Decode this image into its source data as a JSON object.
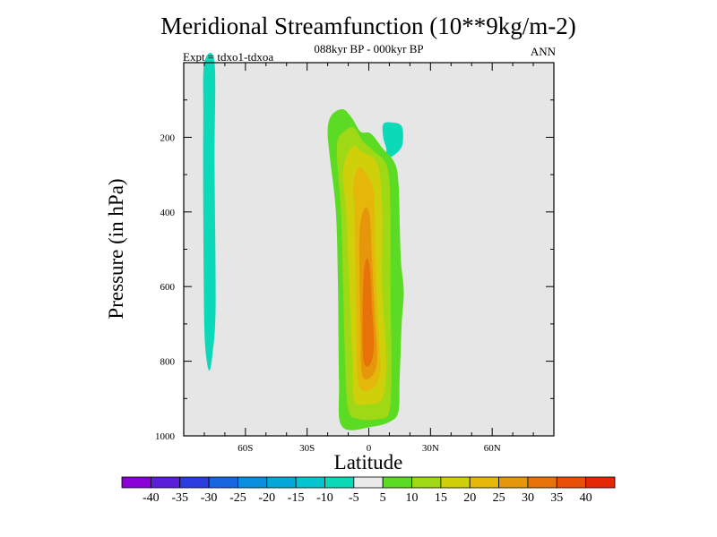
{
  "chart_data": {
    "type": "contour",
    "title": "Meridional Streamfunction (10**9kg/m-2)",
    "subtitle": "088kyr BP - 000kyr BP",
    "left_annotation": "Expt = tdxo1-tdxoa",
    "right_annotation": "ANN",
    "xlabel": "Latitude",
    "ylabel": "Pressure (in hPa)",
    "xlim": [
      -90,
      90
    ],
    "ylim": [
      1000,
      0
    ],
    "x_ticks": [
      {
        "value": -60,
        "label": "60S"
      },
      {
        "value": -30,
        "label": "30S"
      },
      {
        "value": 0,
        "label": "0"
      },
      {
        "value": 30,
        "label": "30N"
      },
      {
        "value": 60,
        "label": "60N"
      }
    ],
    "y_ticks": [
      {
        "value": 200,
        "label": "200"
      },
      {
        "value": 400,
        "label": "400"
      },
      {
        "value": 600,
        "label": "600"
      },
      {
        "value": 800,
        "label": "800"
      },
      {
        "value": 1000,
        "label": "1000"
      }
    ],
    "colorbar": {
      "labels": [
        "-40",
        "-35",
        "-30",
        "-25",
        "-20",
        "-15",
        "-10",
        "-5",
        "5",
        "10",
        "15",
        "20",
        "25",
        "30",
        "35",
        "40"
      ],
      "colors": [
        "#8a00d6",
        "#5a1fd6",
        "#2a3ee0",
        "#1666df",
        "#0a8ee0",
        "#04a8d8",
        "#05c4d2",
        "#0bd9b8",
        "#eaeaea",
        "#5cdb24",
        "#9fd915",
        "#cfcf0a",
        "#e6b70b",
        "#e6960b",
        "#e8720a",
        "#e85008",
        "#e42806"
      ]
    },
    "features": [
      {
        "name": "negative-cell",
        "level": -10,
        "color": "#0bd9b8",
        "outline": [
          [
            -80,
            0
          ],
          [
            -75,
            0
          ],
          [
            -75,
            265
          ],
          [
            -74.5,
            650
          ],
          [
            -76,
            780
          ],
          [
            -77.5,
            825
          ],
          [
            -79,
            790
          ],
          [
            -80,
            700
          ],
          [
            -80.5,
            400
          ],
          [
            -80.5,
            150
          ]
        ]
      },
      {
        "name": "negative-cell-small",
        "level": -10,
        "color": "#0bd9b8",
        "outline": [
          [
            7,
            165
          ],
          [
            11,
            160
          ],
          [
            16,
            170
          ],
          [
            16.5,
            215
          ],
          [
            14,
            240
          ],
          [
            9,
            255
          ],
          [
            8.5,
            230
          ],
          [
            7,
            200
          ]
        ]
      },
      {
        "name": "positive-cell",
        "levels": [
          {
            "level": 5,
            "color": "#5cdb24",
            "outline": [
              [
                -20,
                180
              ],
              [
                -18,
                140
              ],
              [
                -12.5,
                125
              ],
              [
                -8,
                150
              ],
              [
                -4,
                185
              ],
              [
                1,
                190
              ],
              [
                6.5,
                228
              ],
              [
                12.5,
                268
              ],
              [
                14.5,
                330
              ],
              [
                15.5,
                520
              ],
              [
                17,
                612
              ],
              [
                16,
                700
              ],
              [
                15,
                850
              ],
              [
                14.5,
                932
              ],
              [
                11,
                960
              ],
              [
                2,
                975
              ],
              [
                -13,
                975
              ],
              [
                -14.5,
                850
              ],
              [
                -15,
                600
              ],
              [
                -16,
                400
              ],
              [
                -19,
                250
              ]
            ]
          },
          {
            "level": 10,
            "color": "#9fd915",
            "outline": [
              [
                -15.5,
                225
              ],
              [
                -11,
                180
              ],
              [
                -7,
                175
              ],
              [
                -3,
                210
              ],
              [
                2,
                235
              ],
              [
                9,
                280
              ],
              [
                10.5,
                400
              ],
              [
                10.5,
                600
              ],
              [
                11,
                800
              ],
              [
                10,
                935
              ],
              [
                4,
                955
              ],
              [
                -5,
                955
              ],
              [
                -10,
                930
              ],
              [
                -11.5,
                800
              ],
              [
                -12.5,
                600
              ],
              [
                -13.5,
                400
              ]
            ]
          },
          {
            "level": 15,
            "color": "#cfcf0a",
            "outline": [
              [
                -12.5,
                290
              ],
              [
                -8,
                225
              ],
              [
                -3,
                240
              ],
              [
                4,
                270
              ],
              [
                6.5,
                380
              ],
              [
                6.5,
                600
              ],
              [
                8.5,
                800
              ],
              [
                6.5,
                900
              ],
              [
                -1,
                915
              ],
              [
                -7,
                905
              ],
              [
                -8,
                800
              ],
              [
                -9.5,
                600
              ],
              [
                -11,
                400
              ]
            ]
          },
          {
            "level": 20,
            "color": "#e6b70b",
            "outline": [
              [
                -7.5,
                330
              ],
              [
                -5,
                280
              ],
              [
                -1,
                300
              ],
              [
                2.5,
                350
              ],
              [
                3,
                500
              ],
              [
                4.5,
                700
              ],
              [
                5.5,
                830
              ],
              [
                1,
                875
              ],
              [
                -5,
                860
              ],
              [
                -6,
                700
              ],
              [
                -6.5,
                550
              ],
              [
                -7,
                400
              ]
            ]
          },
          {
            "level": 25,
            "color": "#e6960b",
            "outline": [
              [
                -4.5,
                450
              ],
              [
                -2,
                390
              ],
              [
                0.5,
                410
              ],
              [
                1.5,
                520
              ],
              [
                3,
                680
              ],
              [
                4,
                800
              ],
              [
                0.5,
                845
              ],
              [
                -3.5,
                830
              ],
              [
                -4,
                700
              ],
              [
                -4.5,
                570
              ]
            ]
          },
          {
            "level": 30,
            "color": "#e8720a",
            "outline": [
              [
                -2.5,
                570
              ],
              [
                -1,
                525
              ],
              [
                0.5,
                550
              ],
              [
                1.5,
                650
              ],
              [
                2.5,
                760
              ],
              [
                0.5,
                810
              ],
              [
                -2.5,
                800
              ],
              [
                -3,
                700
              ]
            ]
          }
        ]
      }
    ],
    "grid": false,
    "legend": "colorbar-bottom"
  }
}
